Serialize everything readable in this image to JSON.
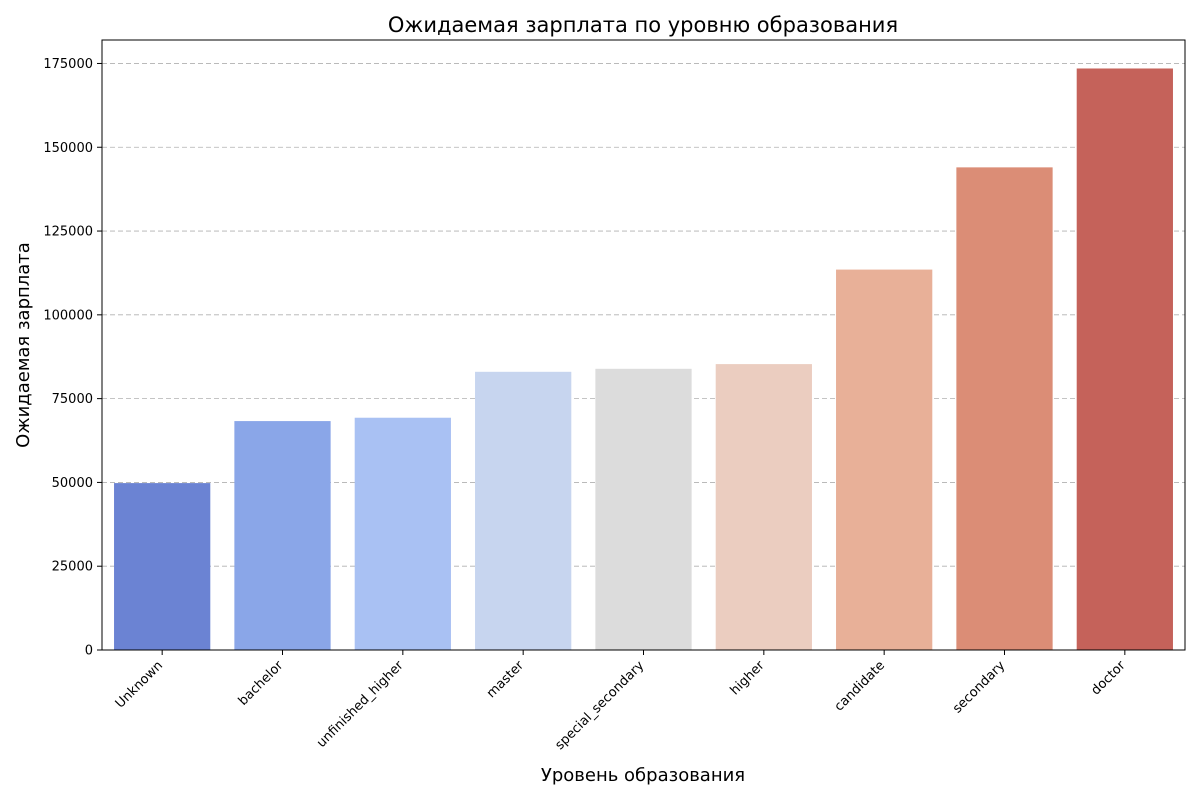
{
  "chart_data": {
    "type": "bar",
    "title": "Ожидаемая зарплата по уровню образования",
    "xlabel": "Уровень образования",
    "ylabel": "Ожидаемая зарплата",
    "categories": [
      "Unknown",
      "bachelor",
      "unfinished_higher",
      "master",
      "special_secondary",
      "higher",
      "candidate",
      "secondary",
      "doctor"
    ],
    "values": [
      49800,
      68300,
      69300,
      83000,
      83900,
      85300,
      113500,
      144000,
      173500
    ],
    "colors": [
      "#6b83d3",
      "#8aa6e8",
      "#a9c1f3",
      "#c7d5ef",
      "#dcdcdc",
      "#ebcdc0",
      "#e8b098",
      "#db8d76",
      "#c5625a"
    ],
    "ylim": [
      0,
      182000
    ],
    "yticks": [
      0,
      25000,
      50000,
      75000,
      100000,
      125000,
      150000,
      175000
    ],
    "grid": "y-dashed",
    "legend": "none"
  }
}
